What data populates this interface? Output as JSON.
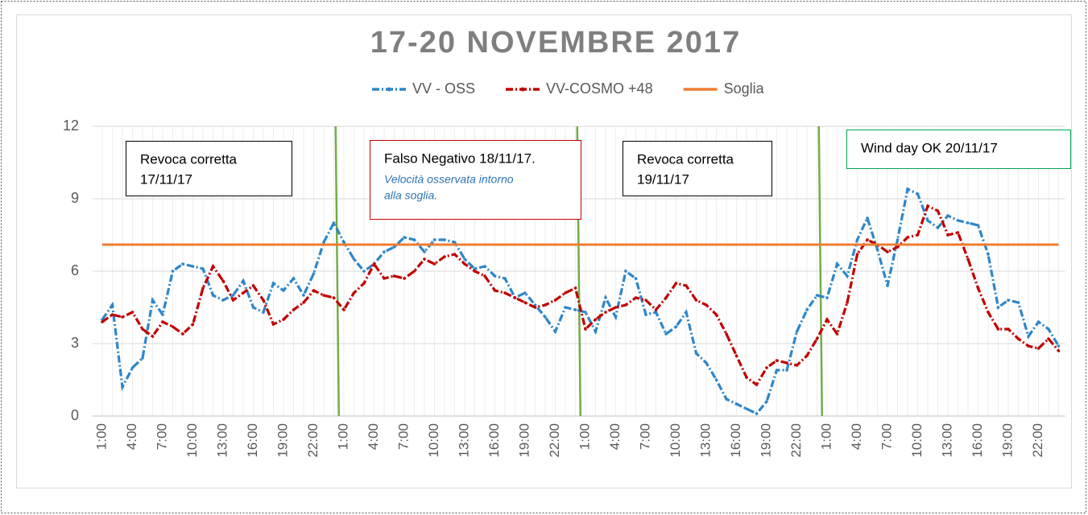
{
  "chart_data": {
    "type": "line",
    "title": "17-20 NOVEMBRE 2017",
    "categories": [
      "1:00",
      null,
      null,
      "4:00",
      null,
      null,
      "7:00",
      null,
      null,
      "10:00",
      null,
      null,
      "13:00",
      null,
      null,
      "16:00",
      null,
      null,
      "19:00",
      null,
      null,
      "22:00",
      null,
      null,
      "1:00",
      null,
      null,
      "4:00",
      null,
      null,
      "7:00",
      null,
      null,
      "10:00",
      null,
      null,
      "13:00",
      null,
      null,
      "16:00",
      null,
      null,
      "19:00",
      null,
      null,
      "22:00",
      null,
      null,
      "1:00",
      null,
      null,
      "4:00",
      null,
      null,
      "7:00",
      null,
      null,
      "10:00",
      null,
      null,
      "13:00",
      null,
      null,
      "16:00",
      null,
      null,
      "19:00",
      null,
      null,
      "22:00",
      null,
      null,
      "1:00",
      null,
      null,
      "4:00",
      null,
      null,
      "7:00",
      null,
      null,
      "10:00",
      null,
      null,
      "13:00",
      null,
      null,
      "16:00",
      null,
      null,
      "19:00",
      null,
      null,
      "22:00",
      null,
      null
    ],
    "series": [
      {
        "name": "VV - OSS",
        "color": "#2e86c9",
        "style": "dashdot",
        "values": [
          4.0,
          4.6,
          1.2,
          2.0,
          2.4,
          4.8,
          4.2,
          6.0,
          6.3,
          6.2,
          6.1,
          5.0,
          4.8,
          5.0,
          5.6,
          4.5,
          4.3,
          5.5,
          5.2,
          5.7,
          5.0,
          5.9,
          7.2,
          8.0,
          7.2,
          6.5,
          6.0,
          6.3,
          6.8,
          7.0,
          7.4,
          7.3,
          6.8,
          7.3,
          7.3,
          7.2,
          6.5,
          6.1,
          6.2,
          5.8,
          5.7,
          4.9,
          5.1,
          4.6,
          4.1,
          3.5,
          4.5,
          4.4,
          4.3,
          3.5,
          4.9,
          4.1,
          6.0,
          5.7,
          4.2,
          4.3,
          3.4,
          3.7,
          4.3,
          2.6,
          2.2,
          1.5,
          0.7,
          0.5,
          0.3,
          0.1,
          0.6,
          1.9,
          1.9,
          3.5,
          4.4,
          5.0,
          4.9,
          6.3,
          5.8,
          7.3,
          8.2,
          6.9,
          5.4,
          7.3,
          9.4,
          9.2,
          8.1,
          7.8,
          8.3,
          8.1,
          8.0,
          7.9,
          6.7,
          4.5,
          4.8,
          4.7,
          3.3,
          3.9,
          3.6,
          2.9
        ]
      },
      {
        "name": "VV-COSMO +48",
        "color": "#c00000",
        "style": "dashdot",
        "values": [
          3.9,
          4.2,
          4.1,
          4.3,
          3.6,
          3.3,
          3.9,
          3.7,
          3.4,
          3.8,
          5.3,
          6.2,
          5.6,
          4.8,
          5.1,
          5.4,
          4.8,
          3.8,
          4.0,
          4.4,
          4.7,
          5.2,
          5.0,
          4.9,
          4.4,
          5.1,
          5.5,
          6.3,
          5.7,
          5.8,
          5.7,
          6.0,
          6.5,
          6.3,
          6.6,
          6.7,
          6.3,
          6.0,
          5.8,
          5.2,
          5.1,
          4.9,
          4.7,
          4.5,
          4.6,
          4.8,
          5.1,
          5.3,
          3.6,
          4.0,
          4.3,
          4.5,
          4.6,
          4.9,
          4.8,
          4.4,
          4.9,
          5.5,
          5.4,
          4.8,
          4.6,
          4.2,
          3.4,
          2.5,
          1.6,
          1.3,
          2.0,
          2.3,
          2.2,
          2.1,
          2.5,
          3.2,
          4.0,
          3.4,
          4.7,
          6.7,
          7.3,
          7.1,
          6.8,
          7.0,
          7.4,
          7.5,
          8.7,
          8.5,
          7.5,
          7.6,
          6.5,
          5.3,
          4.3,
          3.6,
          3.6,
          3.2,
          2.9,
          2.8,
          3.2,
          2.7
        ]
      },
      {
        "name": "Soglia",
        "color": "#ed7d31",
        "style": "solid",
        "values": [
          7.1,
          7.1,
          7.1,
          7.1,
          7.1,
          7.1,
          7.1,
          7.1,
          7.1,
          7.1,
          7.1,
          7.1,
          7.1,
          7.1,
          7.1,
          7.1,
          7.1,
          7.1,
          7.1,
          7.1,
          7.1,
          7.1,
          7.1,
          7.1,
          7.1,
          7.1,
          7.1,
          7.1,
          7.1,
          7.1,
          7.1,
          7.1,
          7.1,
          7.1,
          7.1,
          7.1,
          7.1,
          7.1,
          7.1,
          7.1,
          7.1,
          7.1,
          7.1,
          7.1,
          7.1,
          7.1,
          7.1,
          7.1,
          7.1,
          7.1,
          7.1,
          7.1,
          7.1,
          7.1,
          7.1,
          7.1,
          7.1,
          7.1,
          7.1,
          7.1,
          7.1,
          7.1,
          7.1,
          7.1,
          7.1,
          7.1,
          7.1,
          7.1,
          7.1,
          7.1,
          7.1,
          7.1,
          7.1,
          7.1,
          7.1,
          7.1,
          7.1,
          7.1,
          7.1,
          7.1,
          7.1,
          7.1,
          7.1,
          7.1,
          7.1,
          7.1,
          7.1,
          7.1,
          7.1,
          7.1,
          7.1,
          7.1,
          7.1,
          7.1,
          7.1,
          7.1
        ]
      }
    ],
    "ylim": [
      0,
      12
    ],
    "yticks": [
      0,
      3,
      6,
      9,
      12
    ],
    "grid": true,
    "legend": "top",
    "annotations": [
      {
        "lines": [
          "Revoca corretta",
          "17/11/17"
        ]
      },
      {
        "lines": [
          "Falso Negativo 18/11/17."
        ],
        "note": [
          "Velocità osservata intorno",
          "alla soglia."
        ]
      },
      {
        "lines": [
          "Revoca corretta",
          "19/11/17"
        ]
      },
      {
        "lines": [
          "Wind day OK  20/11/17"
        ]
      }
    ]
  }
}
